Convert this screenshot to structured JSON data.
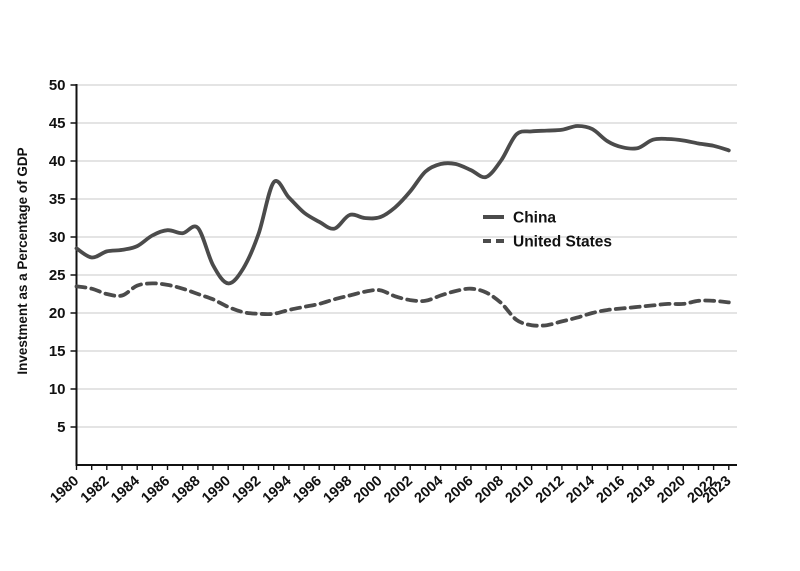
{
  "figure": {
    "background": "#ffffff"
  },
  "chart_data": {
    "type": "line",
    "title": "",
    "ylabel": "Investment as a Percentage of GDP",
    "xlabel": "",
    "ylim": [
      0,
      50
    ],
    "yticks": [
      5,
      10,
      15,
      20,
      25,
      30,
      35,
      40,
      45,
      50
    ],
    "x": [
      1980,
      1981,
      1982,
      1983,
      1984,
      1985,
      1986,
      1987,
      1988,
      1989,
      1990,
      1991,
      1992,
      1993,
      1994,
      1995,
      1996,
      1997,
      1998,
      1999,
      2000,
      2001,
      2002,
      2003,
      2004,
      2005,
      2006,
      2007,
      2008,
      2009,
      2010,
      2011,
      2012,
      2013,
      2014,
      2015,
      2016,
      2017,
      2018,
      2019,
      2020,
      2021,
      2022,
      2023
    ],
    "xtick_labels": [
      "1980",
      "1982",
      "1984",
      "1986",
      "1988",
      "1990",
      "1992",
      "1994",
      "1996",
      "1998",
      "2000",
      "2002",
      "2004",
      "2006",
      "2008",
      "2010",
      "2012",
      "2014",
      "2016",
      "2018",
      "2020",
      "2022",
      "2023"
    ],
    "grid": true,
    "legend_position": "inside-center-right",
    "series": [
      {
        "name": "China",
        "line_style": "solid",
        "color": "#4b4b4b",
        "values": [
          28.5,
          27.3,
          28.1,
          28.3,
          28.8,
          30.2,
          30.9,
          30.5,
          31.2,
          26.3,
          23.9,
          25.9,
          30.4,
          37.2,
          35.2,
          33.2,
          32.0,
          31.1,
          32.9,
          32.5,
          32.6,
          33.9,
          36.0,
          38.6,
          39.6,
          39.6,
          38.8,
          37.9,
          40.1,
          43.5,
          43.9,
          44.0,
          44.1,
          44.6,
          44.2,
          42.6,
          41.8,
          41.7,
          42.8,
          42.9,
          42.7,
          42.3,
          42.0,
          41.4
        ]
      },
      {
        "name": "United States",
        "line_style": "dashed",
        "color": "#4b4b4b",
        "values": [
          23.5,
          23.2,
          22.5,
          22.3,
          23.6,
          23.9,
          23.7,
          23.2,
          22.5,
          21.8,
          20.8,
          20.1,
          19.9,
          19.9,
          20.4,
          20.8,
          21.2,
          21.8,
          22.3,
          22.8,
          23.0,
          22.2,
          21.7,
          21.6,
          22.3,
          22.9,
          23.2,
          22.7,
          21.3,
          19.1,
          18.4,
          18.4,
          18.9,
          19.4,
          20.0,
          20.4,
          20.6,
          20.8,
          21.0,
          21.2,
          21.2,
          21.6,
          21.6,
          21.4
        ]
      }
    ],
    "colors": {
      "line": "#4b4b4b",
      "grid": "#c9c9c9",
      "axis": "#111111",
      "text": "#111111",
      "background": "#ffffff"
    }
  }
}
